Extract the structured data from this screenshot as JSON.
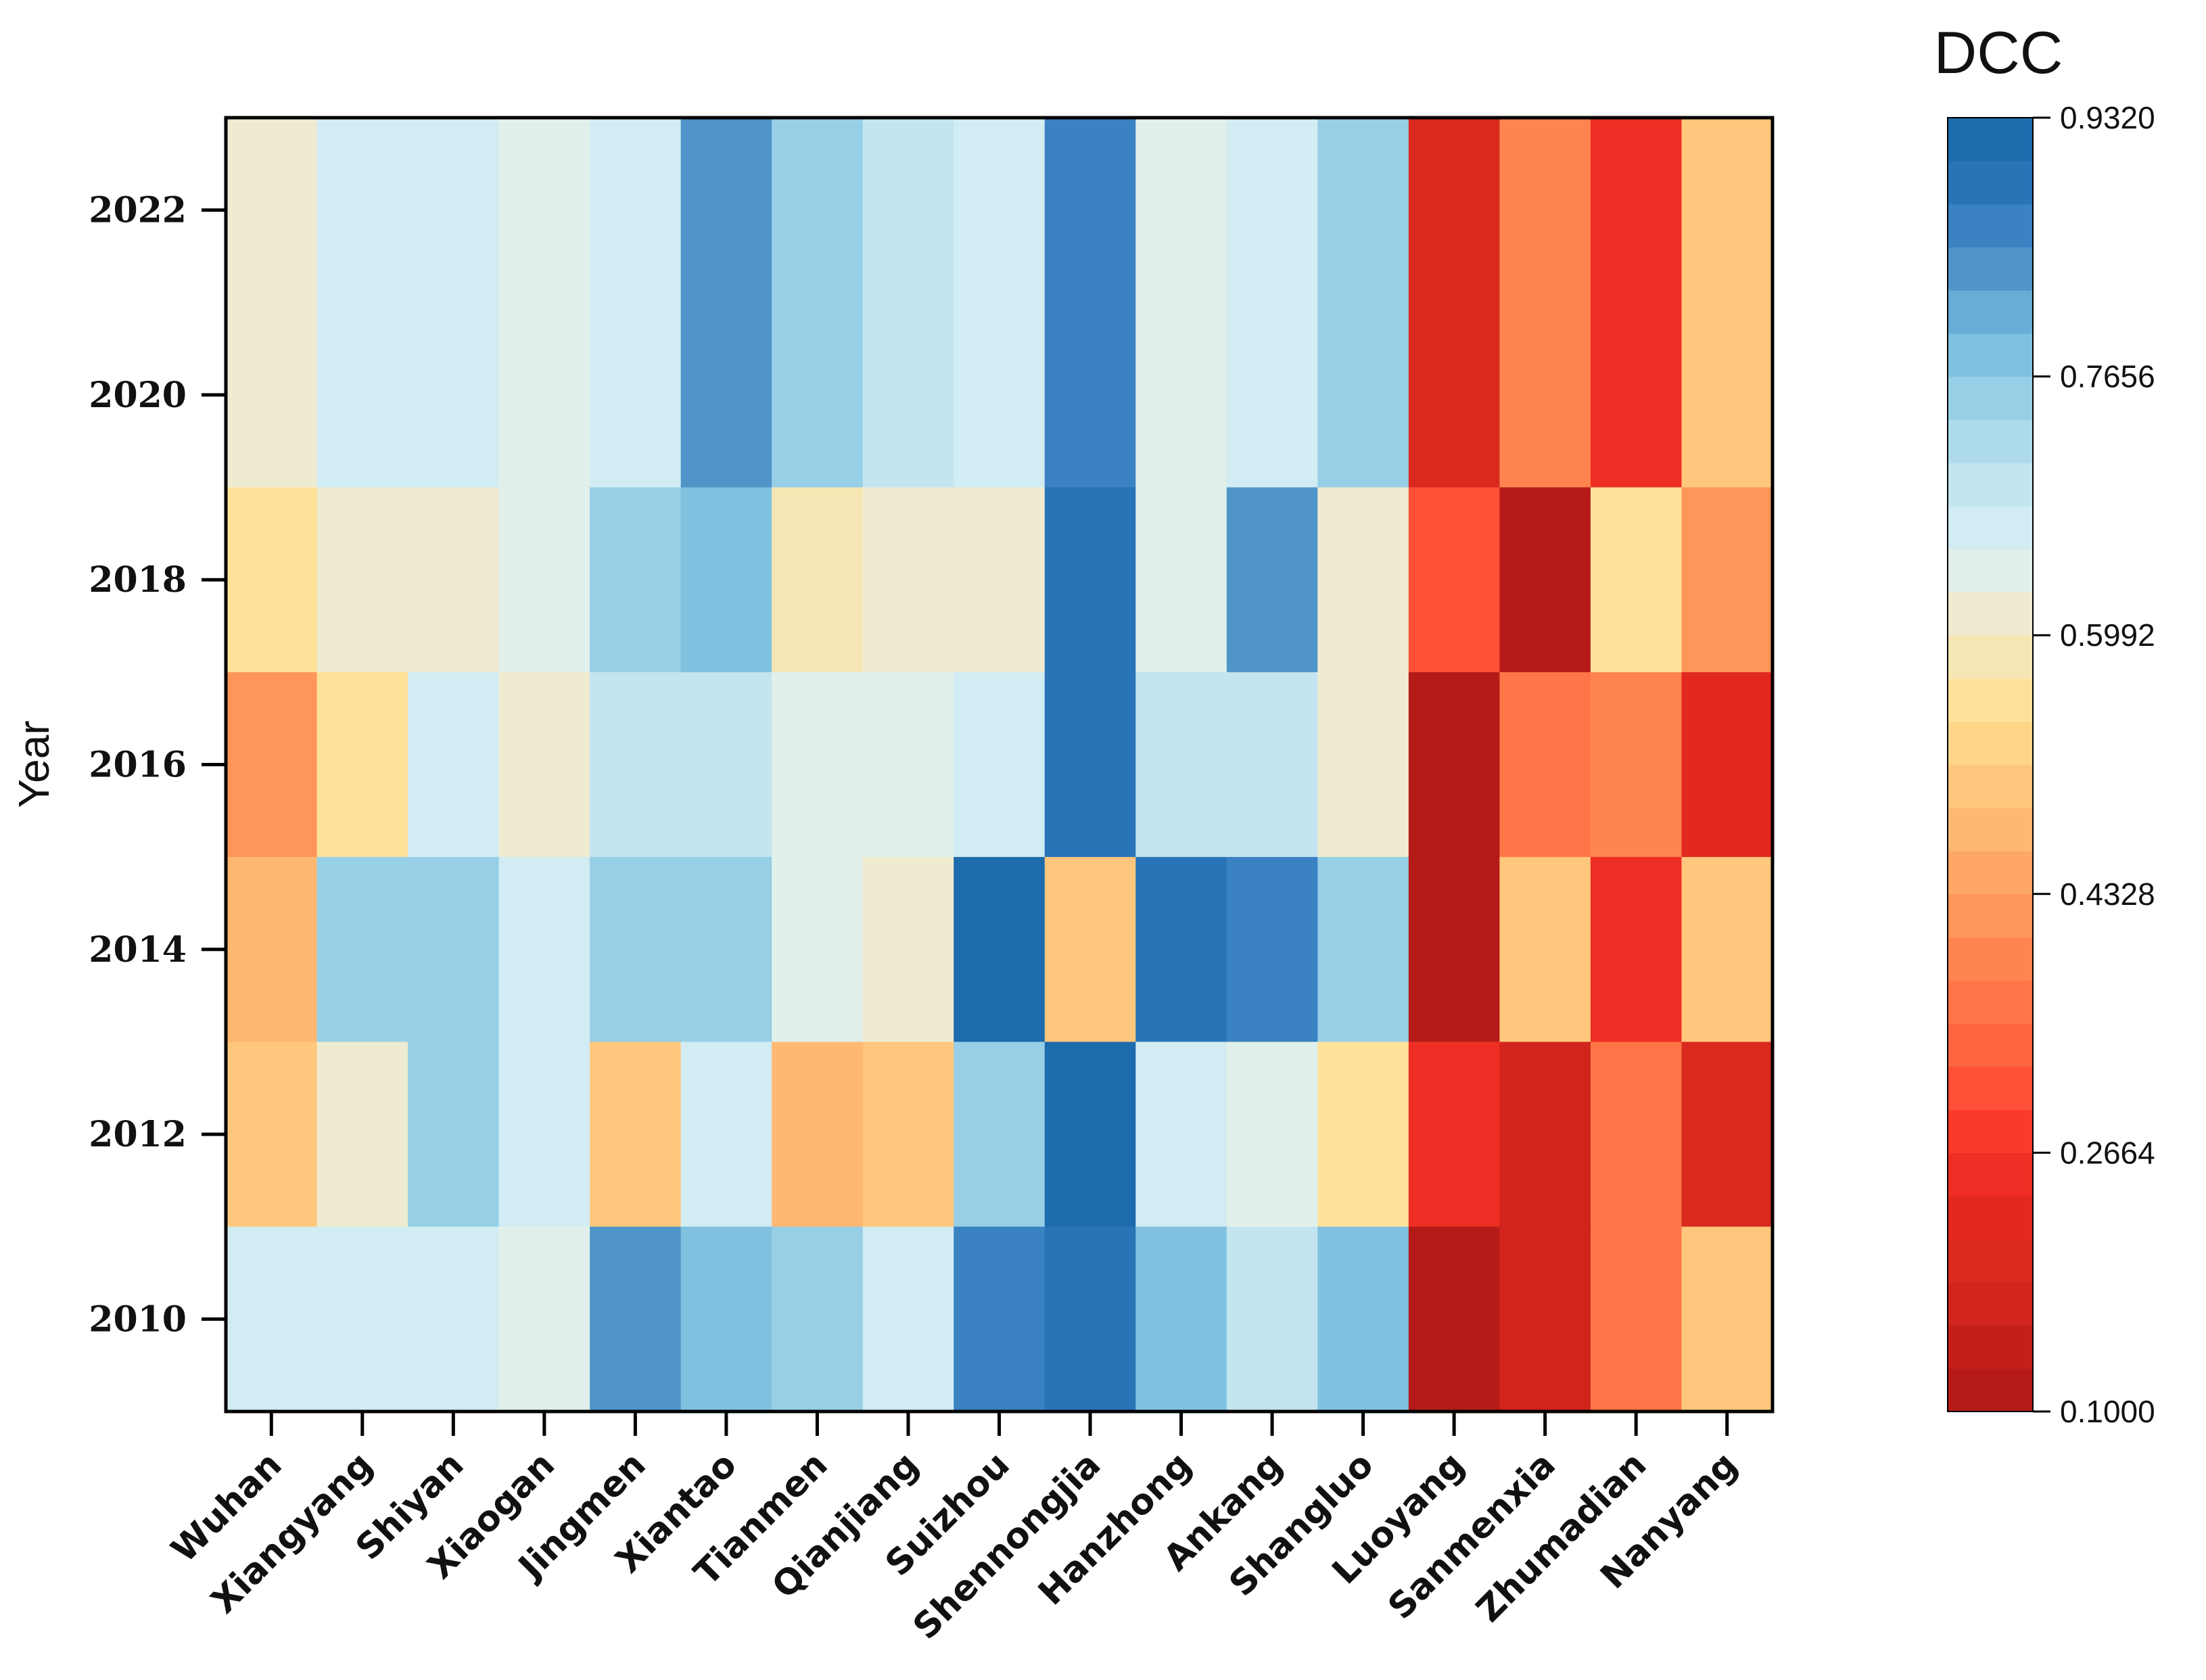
{
  "chart_data": {
    "type": "heatmap",
    "title": "",
    "xlabel": "",
    "ylabel": "Year",
    "colorbar_label": "DCC",
    "categories": [
      "Wuhan",
      "Xiangyang",
      "Shiyan",
      "Xiaogan",
      "Jingmen",
      "Xiantao",
      "Tianmen",
      "Qianjiang",
      "Suizhou",
      "Shennongjia",
      "Hanzhong",
      "Ankang",
      "Shangluo",
      "Luoyang",
      "Sanmenxia",
      "Zhumadian",
      "Nanyang"
    ],
    "rows": [
      {
        "label": "2022",
        "values": [
          0.6,
          0.67,
          0.67,
          0.64,
          0.67,
          0.83,
          0.75,
          0.7,
          0.67,
          0.86,
          0.64,
          0.67,
          0.74,
          0.2,
          0.4,
          0.24,
          0.51
        ]
      },
      {
        "label": "2020",
        "values": [
          0.6,
          0.67,
          0.67,
          0.64,
          0.67,
          0.83,
          0.75,
          0.7,
          0.67,
          0.86,
          0.64,
          0.67,
          0.74,
          0.2,
          0.4,
          0.24,
          0.51
        ]
      },
      {
        "label": "2018",
        "values": [
          0.55,
          0.62,
          0.62,
          0.64,
          0.74,
          0.79,
          0.58,
          0.62,
          0.62,
          0.88,
          0.64,
          0.83,
          0.62,
          0.32,
          0.12,
          0.55,
          0.42
        ]
      },
      {
        "label": "2016",
        "values": [
          0.42,
          0.55,
          0.67,
          0.62,
          0.7,
          0.7,
          0.64,
          0.64,
          0.67,
          0.9,
          0.7,
          0.7,
          0.6,
          0.12,
          0.35,
          0.39,
          0.22
        ]
      },
      {
        "label": "2014",
        "values": [
          0.48,
          0.76,
          0.76,
          0.67,
          0.74,
          0.76,
          0.64,
          0.62,
          0.93,
          0.51,
          0.88,
          0.86,
          0.74,
          0.12,
          0.51,
          0.24,
          0.51
        ]
      },
      {
        "label": "2012",
        "values": [
          0.51,
          0.6,
          0.74,
          0.67,
          0.51,
          0.67,
          0.48,
          0.51,
          0.76,
          0.93,
          0.67,
          0.65,
          0.55,
          0.25,
          0.18,
          0.37,
          0.19
        ]
      },
      {
        "label": "2010",
        "values": [
          0.67,
          0.67,
          0.67,
          0.64,
          0.83,
          0.79,
          0.74,
          0.67,
          0.86,
          0.9,
          0.79,
          0.7,
          0.79,
          0.12,
          0.18,
          0.35,
          0.51
        ]
      }
    ],
    "yticks": [
      "2022",
      "2020",
      "2018",
      "2016",
      "2014",
      "2012",
      "2010"
    ],
    "colorbar": {
      "range": [
        0.1,
        0.932
      ],
      "ticks": [
        "0.9320",
        "0.7656",
        "0.5992",
        "0.4328",
        "0.2664",
        "0.1000"
      ],
      "levels": 30,
      "colors": [
        "#b41b18",
        "#c51f1a",
        "#d0241d",
        "#da2a1f",
        "#e3291f",
        "#ee2e24",
        "#fa3b2b",
        "#ff5038",
        "#ff6540",
        "#ff7548",
        "#ff8450",
        "#ff9659",
        "#ffa766",
        "#ffb872",
        "#ffc77d",
        "#ffd689",
        "#ffe29a",
        "#f5e6b4",
        "#eeebd0",
        "#e1f0ea",
        "#d2ecf3",
        "#c3e5f0",
        "#addbeb",
        "#97cfe6",
        "#80c1df",
        "#67add6",
        "#4f95c9",
        "#3a82c2",
        "#2874b6",
        "#1b6bad"
      ]
    }
  }
}
